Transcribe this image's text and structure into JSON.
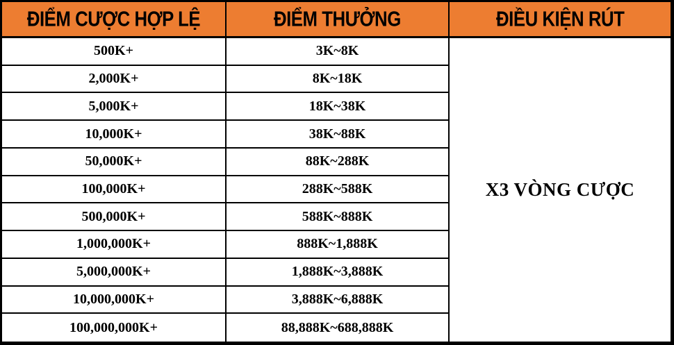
{
  "palette": {
    "header_bg": "#ED7D31",
    "border": "#000000",
    "row_bg": "#FFFFFF",
    "text": "#000000"
  },
  "chart_data": {
    "type": "table",
    "title": "",
    "columns": [
      "ĐIỂM CƯỢC HỢP LỆ",
      "ĐIỂM THƯỞNG",
      "ĐIỀU KIỆN RÚT"
    ],
    "rows": [
      {
        "bet_points": "500K+",
        "reward": "3K~8K"
      },
      {
        "bet_points": "2,000K+",
        "reward": "8K~18K"
      },
      {
        "bet_points": "5,000K+",
        "reward": "18K~38K"
      },
      {
        "bet_points": "10,000K+",
        "reward": "38K~88K"
      },
      {
        "bet_points": "50,000K+",
        "reward": "88K~288K"
      },
      {
        "bet_points": "100,000K+",
        "reward": "288K~588K"
      },
      {
        "bet_points": "500,000K+",
        "reward": "588K~888K"
      },
      {
        "bet_points": "1,000,000K+",
        "reward": "888K~1,888K"
      },
      {
        "bet_points": "5,000,000K+",
        "reward": "1,888K~3,888K"
      },
      {
        "bet_points": "10,000,000K+",
        "reward": "3,888K~6,888K"
      },
      {
        "bet_points": "100,000,000K+",
        "reward": "88,888K~688,888K"
      }
    ],
    "merged_cell": {
      "column": "ĐIỀU KIỆN RÚT",
      "value": "X3 VÒNG CƯỢC",
      "row_span": 11
    },
    "layout": {
      "grid": "on",
      "header_style": "orange-filled",
      "outer_border": "thick-black"
    }
  }
}
